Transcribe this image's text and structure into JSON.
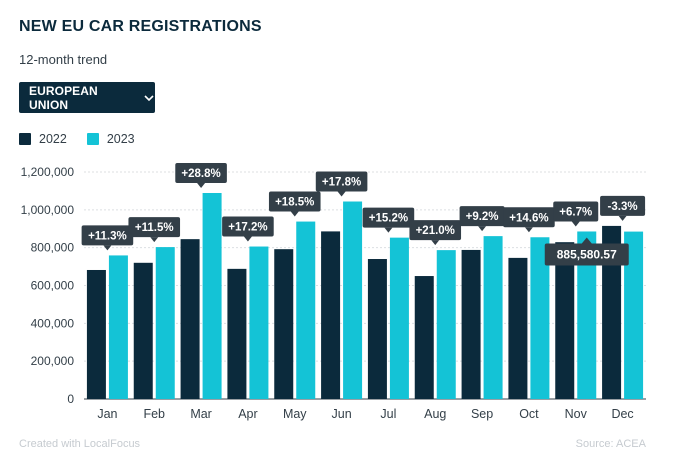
{
  "header": {
    "title": "NEW EU CAR REGISTRATIONS",
    "subtitle": "12-month trend"
  },
  "dropdown": {
    "selected": "EUROPEAN UNION",
    "icon": "chevron-down-icon"
  },
  "footer": {
    "credit": "Created with LocalFocus",
    "source": "Source: ACEA"
  },
  "colors": {
    "series_2022": "#0b2a3c",
    "series_2023": "#14c3d6",
    "callout": "#333f48",
    "grid": "#dcdfe2"
  },
  "chart_data": {
    "type": "bar",
    "title": "NEW EU CAR REGISTRATIONS",
    "subtitle": "12-month trend",
    "categories": [
      "Jan",
      "Feb",
      "Mar",
      "Apr",
      "May",
      "Jun",
      "Jul",
      "Aug",
      "Sep",
      "Oct",
      "Nov",
      "Dec"
    ],
    "series": [
      {
        "name": "2022",
        "values": [
          682000,
          720000,
          845000,
          688000,
          792000,
          886000,
          740000,
          650000,
          788000,
          746000,
          829000,
          915000
        ]
      },
      {
        "name": "2023",
        "values": [
          759000,
          803000,
          1089000,
          806000,
          938000,
          1044000,
          853000,
          787000,
          861000,
          855000,
          885580.57,
          885000
        ]
      }
    ],
    "change_labels": [
      "+11.3%",
      "+11.5%",
      "+28.8%",
      "+17.2%",
      "+18.5%",
      "+17.8%",
      "+15.2%",
      "+21.0%",
      "+9.2%",
      "+14.6%",
      "+6.7%",
      "-3.3%"
    ],
    "tooltip": {
      "category": "Nov",
      "series": "2023",
      "text": "885,580.57"
    },
    "yticks": [
      "0",
      "200,000",
      "400,000",
      "600,000",
      "800,000",
      "1,000,000",
      "1,200,000"
    ],
    "ylim": [
      0,
      1200000
    ],
    "grid": true,
    "legend": "top-left"
  }
}
